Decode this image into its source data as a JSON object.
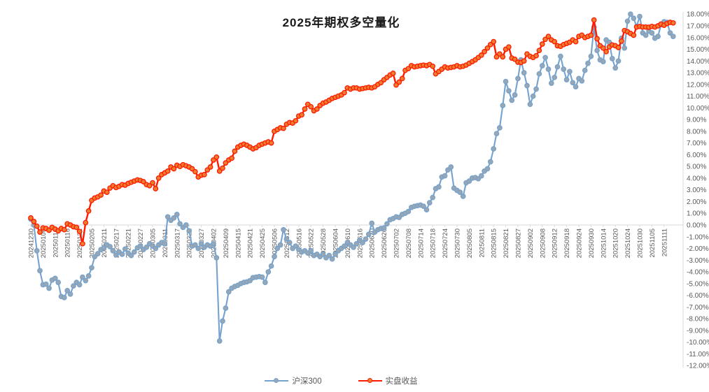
{
  "title": "2025年期权多空量化",
  "legend": [
    {
      "name": "沪深300",
      "line_color": "#74A3CF",
      "marker_color": "#9AA6B2"
    },
    {
      "name": "实盘收益",
      "line_color": "#FF1A00",
      "marker_color": "#ED7D31"
    }
  ],
  "colors": {
    "grid": "#D9D9D9",
    "axis_line": "#D9D9D9",
    "axis_text": "#595959",
    "title_text": "#1a1a1a",
    "background": "#FFFFFF"
  },
  "axes": {
    "y": {
      "min": -12,
      "max": 18,
      "step": 1,
      "suffix": "%",
      "decimals": 2,
      "side": "right"
    },
    "x_tick_every": 4
  },
  "chart_data": {
    "type": "line",
    "title": "2025年期权多空量化",
    "xlabel": "",
    "ylabel": "",
    "ylim": [
      -12,
      18
    ],
    "grid": "zero-line-only",
    "legend_position": "bottom",
    "x": [
      "20241230",
      "20241231",
      "20250102",
      "20250103",
      "20250106",
      "20250107",
      "20250108",
      "20250109",
      "20250110",
      "20250113",
      "20250114",
      "20250115",
      "20250116",
      "20250117",
      "20250120",
      "20250121",
      "20250122",
      "20250123",
      "20250124",
      "20250127",
      "20250205",
      "20250206",
      "20250207",
      "20250210",
      "20250211",
      "20250212",
      "20250213",
      "20250214",
      "20250217",
      "20250218",
      "20250219",
      "20250220",
      "20250221",
      "20250224",
      "20250225",
      "20250226",
      "20250227",
      "20250228",
      "20250303",
      "20250304",
      "20250305",
      "20250306",
      "20250307",
      "20250310",
      "20250311",
      "20250312",
      "20250313",
      "20250314",
      "20250317",
      "20250318",
      "20250319",
      "20250320",
      "20250321",
      "20250324",
      "20250325",
      "20250326",
      "20250327",
      "20250328",
      "20250331",
      "20250401",
      "20250402",
      "20250403",
      "20250407",
      "20250408",
      "20250409",
      "20250410",
      "20250411",
      "20250414",
      "20250415",
      "20250416",
      "20250417",
      "20250418",
      "20250421",
      "20250422",
      "20250423",
      "20250424",
      "20250425",
      "20250428",
      "20250429",
      "20250430",
      "20250506",
      "20250507",
      "20250508",
      "20250509",
      "20250512",
      "20250513",
      "20250514",
      "20250515",
      "20250516",
      "20250519",
      "20250520",
      "20250521",
      "20250522",
      "20250523",
      "20250526",
      "20250527",
      "20250528",
      "20250529",
      "20250530",
      "20250603",
      "20250604",
      "20250605",
      "20250606",
      "20250609",
      "20250610",
      "20250611",
      "20250612",
      "20250613",
      "20250616",
      "20250617",
      "20250618",
      "20250619",
      "20250620",
      "20250623",
      "20250624",
      "20250625",
      "20250626",
      "20250627",
      "20250630",
      "20250701",
      "20250702",
      "20250703",
      "20250704",
      "20250707",
      "20250708",
      "20250709",
      "20250710",
      "20250711",
      "20250714",
      "20250715",
      "20250716",
      "20250717",
      "20250718",
      "20250721",
      "20250722",
      "20250723",
      "20250724",
      "20250725",
      "20250728",
      "20250729",
      "20250730",
      "20250731",
      "20250801",
      "20250804",
      "20250805",
      "20250806",
      "20250807",
      "20250808",
      "20250811",
      "20250812",
      "20250813",
      "20250814",
      "20250815",
      "20250818",
      "20250819",
      "20250820",
      "20250821",
      "20250822",
      "20250825",
      "20250826",
      "20250827",
      "20250828",
      "20250829",
      "20250901",
      "20250902",
      "20250903",
      "20250904",
      "20250905",
      "20250908",
      "20250909",
      "20250910",
      "20250911",
      "20250912",
      "20250915",
      "20250916",
      "20250917",
      "20250918",
      "20250919",
      "20250922",
      "20250923",
      "20250924",
      "20250925",
      "20250926",
      "20250929",
      "20250930",
      "20251009",
      "20251010",
      "20251013",
      "20251014",
      "20251015",
      "20251016",
      "20251017",
      "20251020",
      "20251021",
      "20251022",
      "20251023",
      "20251024",
      "20251027",
      "20251028",
      "20251029",
      "20251030",
      "20251031",
      "20251103",
      "20251104",
      "20251105",
      "20251106",
      "20251107",
      "20251110",
      "20251111",
      "20251112",
      "20251113",
      "20251114"
    ],
    "series": [
      {
        "name": "沪深300",
        "unit": "%",
        "values": [
          0.5,
          0.0,
          -2.2,
          -3.9,
          -5.1,
          -5.05,
          -5.4,
          -4.7,
          -4.55,
          -4.9,
          -6.1,
          -6.2,
          -5.6,
          -5.9,
          -5.2,
          -4.9,
          -5.1,
          -4.45,
          -4.75,
          -4.35,
          -3.65,
          -2.7,
          -2.45,
          -2.1,
          -1.95,
          -1.7,
          -1.85,
          -2.2,
          -2.55,
          -2.3,
          -2.5,
          -2.05,
          -2.4,
          -2.6,
          -2.3,
          -1.95,
          -1.8,
          -2.1,
          -1.9,
          -1.6,
          -1.8,
          -2.0,
          -1.7,
          -1.5,
          -1.6,
          0.7,
          0.4,
          0.6,
          0.9,
          0.1,
          -0.2,
          0.0,
          -0.5,
          -1.8,
          -1.7,
          -2.0,
          -1.6,
          -1.9,
          -1.7,
          -1.8,
          -1.6,
          -2.8,
          -9.9,
          -8.2,
          -7.1,
          -5.7,
          -5.4,
          -5.25,
          -5.15,
          -5.0,
          -4.9,
          -4.85,
          -4.75,
          -4.5,
          -4.45,
          -4.4,
          -4.45,
          -4.9,
          -4.0,
          -3.5,
          -2.7,
          -2.0,
          -1.7,
          -0.4,
          -1.2,
          -1.5,
          -2.0,
          -1.8,
          -2.1,
          -2.3,
          -2.2,
          -2.4,
          -2.2,
          -2.6,
          -2.5,
          -2.7,
          -2.5,
          -2.8,
          -2.6,
          -2.9,
          -2.5,
          -2.2,
          -2.0,
          -1.8,
          -1.5,
          -1.7,
          -1.9,
          -1.6,
          -1.3,
          -1.5,
          -1.2,
          -0.8,
          0.15,
          -0.6,
          -0.4,
          -0.3,
          -0.25,
          0.1,
          0.45,
          0.55,
          0.7,
          0.65,
          0.9,
          1.0,
          1.15,
          1.5,
          1.6,
          1.65,
          1.7,
          1.6,
          1.3,
          1.9,
          2.35,
          3.1,
          3.25,
          4.1,
          4.2,
          4.7,
          4.95,
          3.15,
          2.95,
          2.8,
          2.45,
          3.6,
          3.75,
          4.0,
          4.05,
          3.95,
          4.2,
          4.6,
          4.8,
          5.4,
          6.5,
          7.8,
          8.3,
          10.2,
          12.25,
          11.45,
          10.65,
          11.1,
          12.5,
          14.1,
          13.0,
          11.9,
          10.3,
          11.0,
          11.6,
          12.9,
          13.6,
          14.3,
          13.3,
          12.1,
          12.6,
          13.5,
          14.4,
          13.3,
          12.4,
          13.1,
          12.15,
          11.8,
          12.5,
          12.3,
          13.2,
          13.8,
          14.4,
          16.9,
          14.9,
          14.1,
          13.95,
          15.8,
          15.6,
          14.2,
          13.4,
          14.0,
          15.95,
          15.1,
          17.4,
          18.0,
          17.65,
          16.95,
          17.8,
          16.4,
          16.2,
          16.55,
          16.4,
          15.95,
          16.1,
          17.1,
          17.35,
          17.3,
          16.4,
          16.1
        ]
      },
      {
        "name": "实盘收益",
        "unit": "%",
        "values": [
          0.6,
          0.3,
          -0.1,
          -0.6,
          -0.25,
          -0.3,
          -0.45,
          -0.2,
          -0.35,
          -0.5,
          -0.3,
          -0.4,
          0.1,
          0.0,
          -0.15,
          -0.2,
          -0.55,
          -1.6,
          0.2,
          1.2,
          2.1,
          2.3,
          2.4,
          2.55,
          2.9,
          2.8,
          3.15,
          3.35,
          3.2,
          3.3,
          3.45,
          3.4,
          3.55,
          3.65,
          3.75,
          3.85,
          3.8,
          3.7,
          3.45,
          3.35,
          3.6,
          3.1,
          4.0,
          4.3,
          4.45,
          4.6,
          4.95,
          4.8,
          5.1,
          5.0,
          5.15,
          5.05,
          4.95,
          4.8,
          4.55,
          4.1,
          4.25,
          4.3,
          4.7,
          4.95,
          5.55,
          5.8,
          4.6,
          4.85,
          5.3,
          5.55,
          5.7,
          6.3,
          6.65,
          6.8,
          6.9,
          6.8,
          6.65,
          6.5,
          6.6,
          6.8,
          6.9,
          7.0,
          7.1,
          7.0,
          8.0,
          8.15,
          8.3,
          8.25,
          8.6,
          8.75,
          8.7,
          8.9,
          9.3,
          9.4,
          9.9,
          10.3,
          10.1,
          9.75,
          9.9,
          10.2,
          10.4,
          10.5,
          10.65,
          10.8,
          10.9,
          11.0,
          11.1,
          11.3,
          11.7,
          11.6,
          11.7,
          11.7,
          11.6,
          11.65,
          11.7,
          11.75,
          11.7,
          11.8,
          12.0,
          12.15,
          12.4,
          12.6,
          12.8,
          12.95,
          11.95,
          12.2,
          12.5,
          13.2,
          13.35,
          13.6,
          13.5,
          13.55,
          13.6,
          13.65,
          13.6,
          13.7,
          13.55,
          12.9,
          13.1,
          13.3,
          13.5,
          13.4,
          13.45,
          13.5,
          13.6,
          13.5,
          13.55,
          13.65,
          13.8,
          13.95,
          14.1,
          14.3,
          14.5,
          14.8,
          15.1,
          15.4,
          15.65,
          14.35,
          14.6,
          14.35,
          15.0,
          15.2,
          14.25,
          14.15,
          13.9,
          13.87,
          14.0,
          14.6,
          14.4,
          14.3,
          14.45,
          14.9,
          15.45,
          15.85,
          16.1,
          15.8,
          15.65,
          15.3,
          15.25,
          15.4,
          15.5,
          15.6,
          15.8,
          15.65,
          16.1,
          16.2,
          16.0,
          16.1,
          16.2,
          17.5,
          15.9,
          15.3,
          15.1,
          14.8,
          15.2,
          15.37,
          15.3,
          15.15,
          15.7,
          16.6,
          16.5,
          16.35,
          16.2,
          16.9,
          16.95,
          16.9,
          16.9,
          16.88,
          16.95,
          16.9,
          17.0,
          17.15,
          17.05,
          17.2,
          17.3,
          17.25
        ]
      }
    ]
  }
}
